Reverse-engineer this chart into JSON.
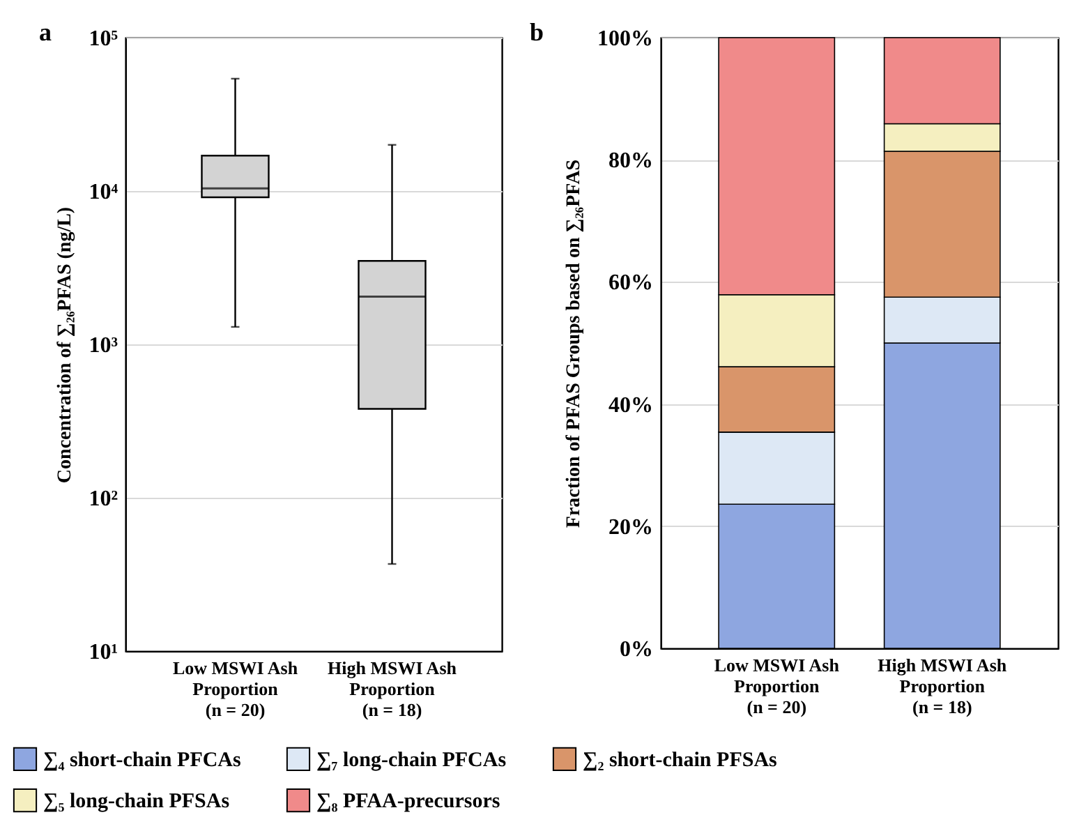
{
  "chart_data": [
    {
      "type": "box",
      "title": "a",
      "ylabel": "Concentration of ∑₂₆PFAS (ng/L)",
      "categories": [
        "Low MSWI Ash\nProportion\n(n = 20)",
        "High MSWI Ash\nProportion\n(n = 18)"
      ],
      "boxes": [
        {
          "low": 1300,
          "q1": 9100,
          "median": 10400,
          "q3": 17000,
          "high": 54000
        },
        {
          "low": 37,
          "q1": 380,
          "median": 2050,
          "q3": 3500,
          "high": 20000
        }
      ],
      "color": "#d3d3d3",
      "log": "y",
      "ylim": [
        10,
        100000
      ],
      "yticks": [
        {
          "value": 10,
          "label": "10¹"
        },
        {
          "value": 100,
          "label": "10²"
        },
        {
          "value": 1000,
          "label": "10³"
        },
        {
          "value": 10000,
          "label": "10⁴"
        },
        {
          "value": 100000,
          "label": "10⁵"
        }
      ],
      "grid": "y"
    },
    {
      "type": "bar",
      "title": "b",
      "ylabel": "Fraction of PFAS Groups based on ∑₂₆PFAS",
      "stacked": true,
      "categories": [
        "Low MSWI Ash\nProportion\n(n = 20)",
        "High MSWI Ash\nProportion\n(n = 18)"
      ],
      "series": [
        {
          "name": "∑₄ short-chain PFCAs",
          "color": "#8ea6e0",
          "values": [
            23.6,
            50
          ]
        },
        {
          "name": "∑₇ long-chain PFCAs",
          "color": "#dde8f5",
          "values": [
            11.8,
            7.5
          ]
        },
        {
          "name": "∑₂ short-chain PFSAs",
          "color": "#d9956a",
          "values": [
            10.7,
            23.9
          ]
        },
        {
          "name": "∑₅ long-chain PFSAs",
          "color": "#f5efc0",
          "values": [
            11.8,
            4.5
          ]
        },
        {
          "name": "∑₈ PFAA-precursors",
          "color": "#f08a8a",
          "values": [
            42.1,
            14.1
          ]
        }
      ],
      "ylim": [
        0,
        100
      ],
      "yticks": [
        {
          "value": 0,
          "label": "0%"
        },
        {
          "value": 20,
          "label": "20%"
        },
        {
          "value": 40,
          "label": "40%"
        },
        {
          "value": 60,
          "label": "60%"
        },
        {
          "value": 80,
          "label": "80%"
        },
        {
          "value": 100,
          "label": "100%"
        }
      ],
      "grid": "y",
      "legend": "bottom"
    }
  ]
}
